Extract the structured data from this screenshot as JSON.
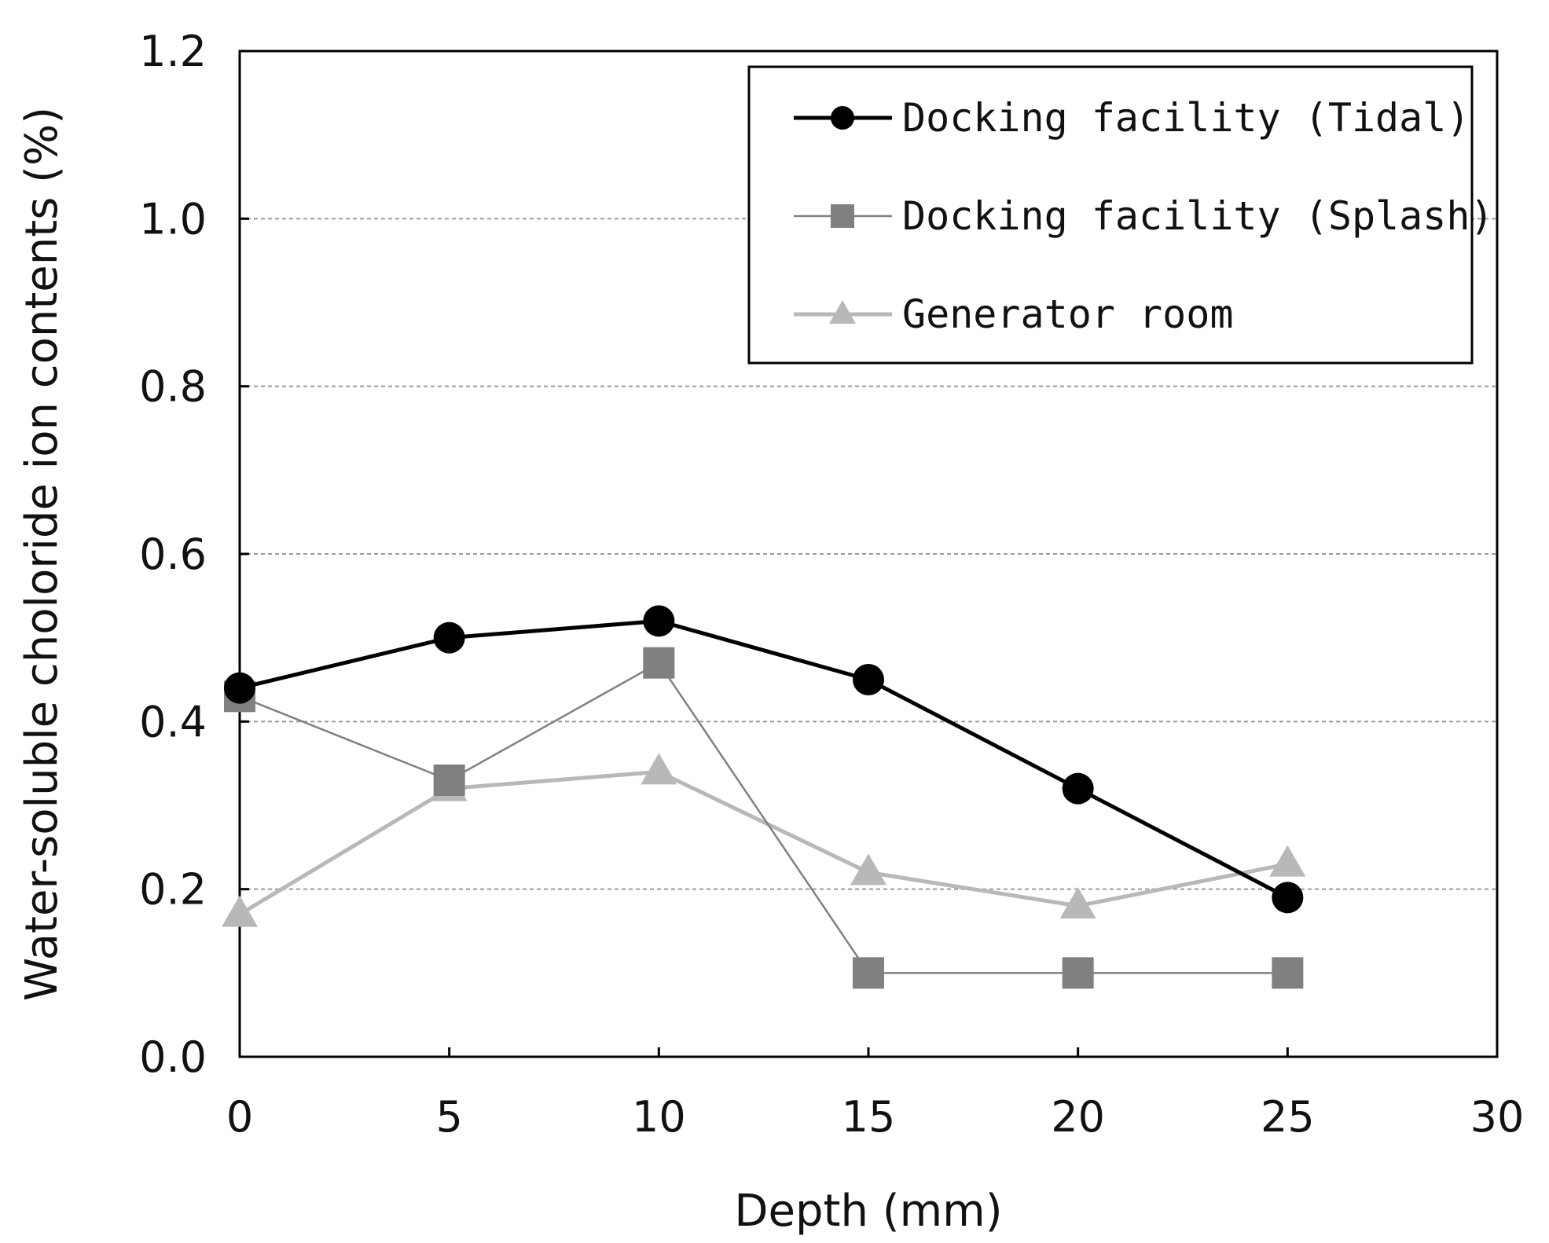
{
  "chart_data": {
    "type": "line",
    "title": "",
    "xlabel": "Depth (mm)",
    "ylabel": "Water-soluble choloride ion contents (%)",
    "xlim": [
      0,
      30
    ],
    "ylim": [
      0,
      1.2
    ],
    "xticks": [
      "0",
      "5",
      "10",
      "15",
      "20",
      "25",
      "30"
    ],
    "yticks": [
      "0.0",
      "0.2",
      "0.4",
      "0.6",
      "0.8",
      "1.0",
      "1.2"
    ],
    "grid": "horizontal dashed",
    "legend": "top-right",
    "x": [
      0,
      5,
      10,
      15,
      20,
      25
    ],
    "series": [
      {
        "name": "Docking facility (Tidal)",
        "values": [
          0.44,
          0.5,
          0.52,
          0.45,
          0.32,
          0.19
        ],
        "color": "#000000",
        "marker": "circle"
      },
      {
        "name": "Docking facility (Splash)",
        "values": [
          0.43,
          0.33,
          0.47,
          0.1,
          0.1,
          0.1
        ],
        "color": "#808080",
        "marker": "square"
      },
      {
        "name": "Generator room",
        "values": [
          0.17,
          0.32,
          0.34,
          0.22,
          0.18,
          0.23
        ],
        "color": "#b8b8b8",
        "marker": "triangle"
      }
    ]
  }
}
